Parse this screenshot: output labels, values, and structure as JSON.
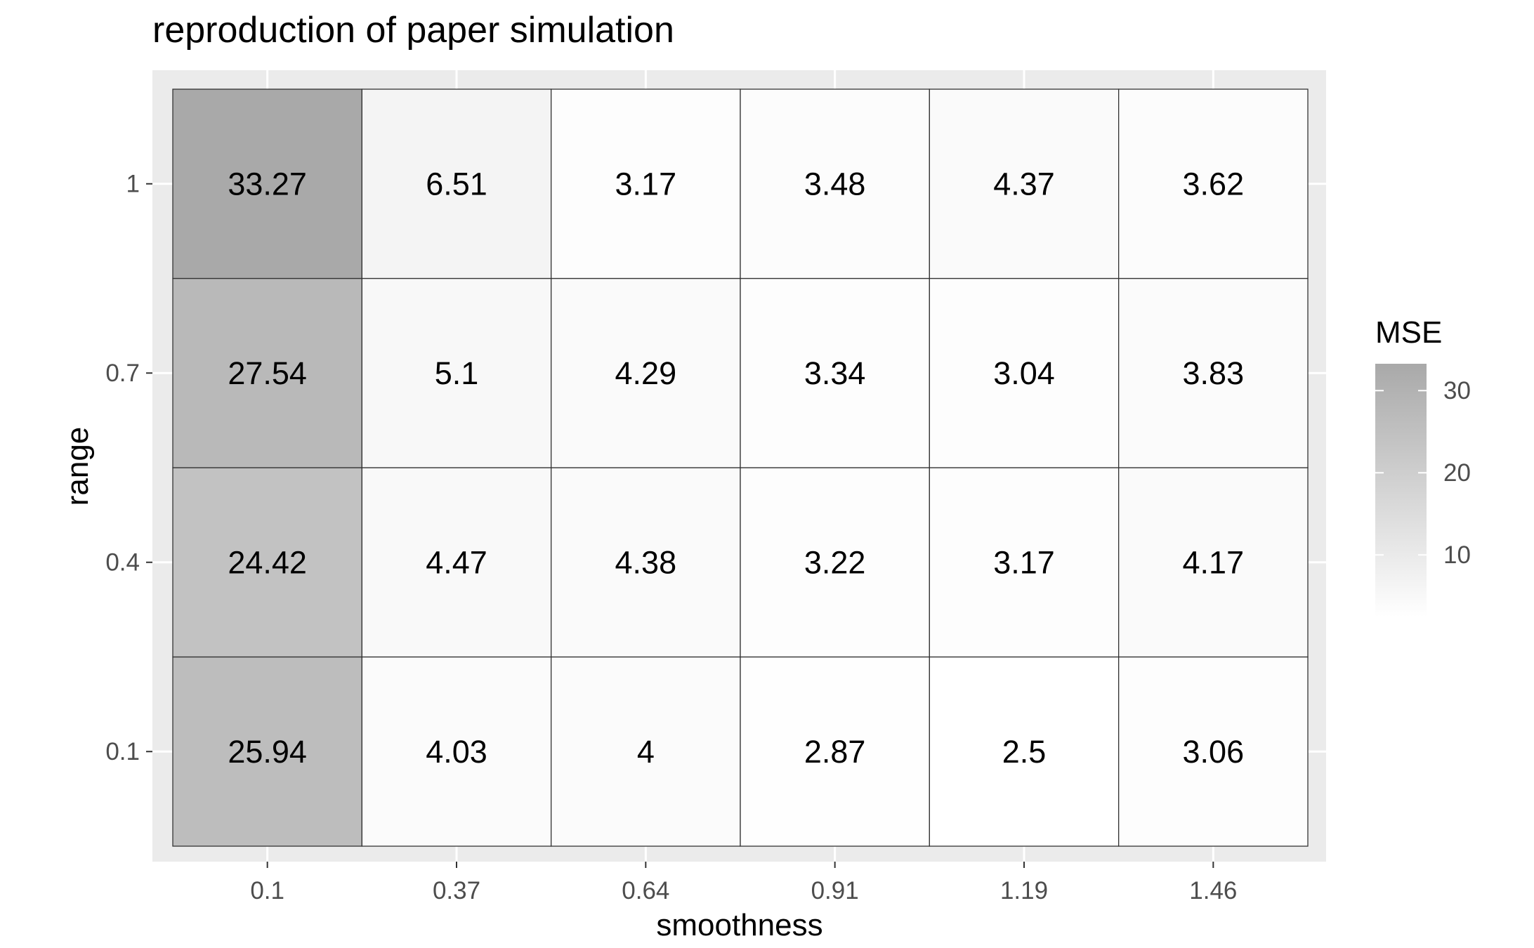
{
  "chart_data": {
    "type": "heatmap",
    "title": "reproduction of paper simulation",
    "xlabel": "smoothness",
    "ylabel": "range",
    "x_categories": [
      "0.1",
      "0.37",
      "0.64",
      "0.91",
      "1.19",
      "1.46"
    ],
    "y_categories": [
      "0.1",
      "0.4",
      "0.7",
      "1"
    ],
    "values": [
      [
        25.94,
        4.03,
        4,
        2.87,
        2.5,
        3.06
      ],
      [
        24.42,
        4.47,
        4.38,
        3.22,
        3.17,
        4.17
      ],
      [
        27.54,
        5.1,
        4.29,
        3.34,
        3.04,
        3.83
      ],
      [
        33.27,
        6.51,
        3.17,
        3.48,
        4.37,
        3.62
      ]
    ],
    "labels": [
      [
        "25.94",
        "4.03",
        "4",
        "2.87",
        "2.5",
        "3.06"
      ],
      [
        "24.42",
        "4.47",
        "4.38",
        "3.22",
        "3.17",
        "4.17"
      ],
      [
        "27.54",
        "5.1",
        "4.29",
        "3.34",
        "3.04",
        "3.83"
      ],
      [
        "33.27",
        "6.51",
        "3.17",
        "3.48",
        "4.37",
        "3.62"
      ]
    ],
    "legend": {
      "title": "MSE",
      "placement": "right",
      "breaks": [
        10,
        20,
        30
      ],
      "break_labels": [
        "10",
        "20",
        "30"
      ],
      "limits": [
        2.5,
        33.27
      ],
      "low_color": "#ffffff",
      "high_color": "#a9a9a9"
    },
    "panel_background": "#ebebeb",
    "gridline_color": "#ffffff",
    "cell_border_color": "#333333",
    "grid": true
  }
}
